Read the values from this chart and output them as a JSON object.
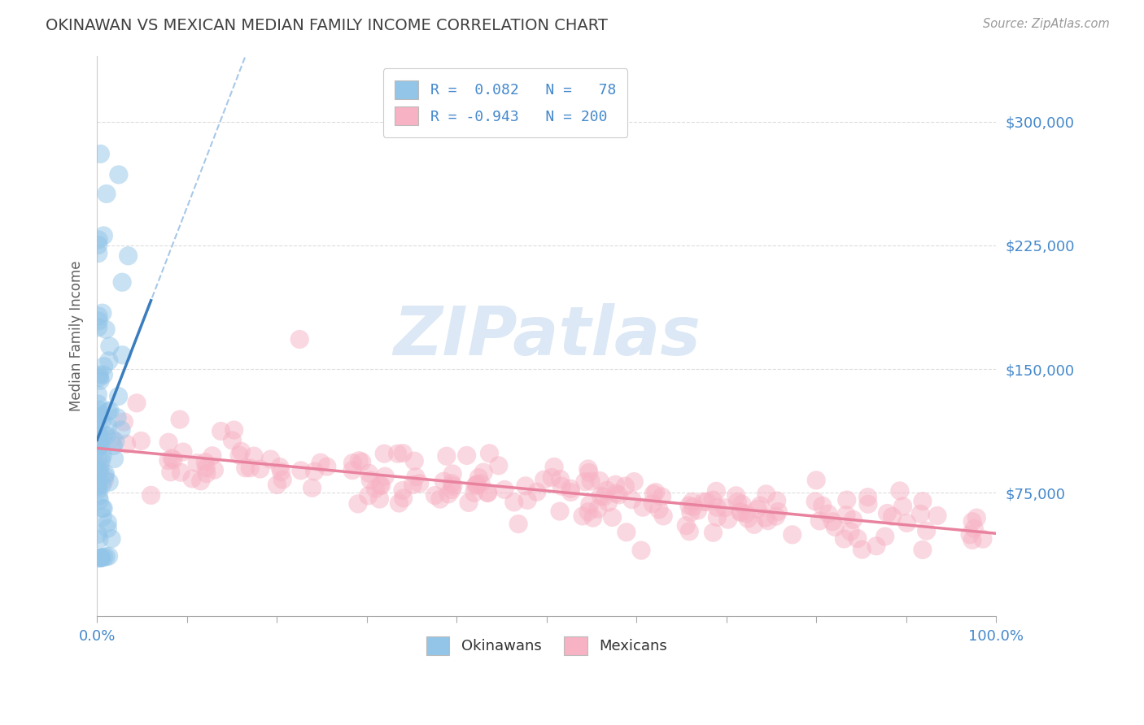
{
  "title": "OKINAWAN VS MEXICAN MEDIAN FAMILY INCOME CORRELATION CHART",
  "source_text": "Source: ZipAtlas.com",
  "ylabel": "Median Family Income",
  "xlim": [
    0.0,
    1.0
  ],
  "ylim": [
    0,
    340000
  ],
  "yticks": [
    75000,
    150000,
    225000,
    300000
  ],
  "ytick_labels": [
    "$75,000",
    "$150,000",
    "$225,000",
    "$300,000"
  ],
  "xtick_positions": [
    0.0,
    0.1,
    0.2,
    0.3,
    0.4,
    0.5,
    0.6,
    0.7,
    0.8,
    0.9,
    1.0
  ],
  "xtick_labels_shown": [
    "0.0%",
    "",
    "",
    "",
    "",
    "",
    "",
    "",
    "",
    "",
    "100.0%"
  ],
  "okinawan_color": "#92c5e8",
  "okinawan_edge": "#92c5e8",
  "mexican_color": "#f7b2c4",
  "mexican_edge": "#f7b2c4",
  "trend_okinawan_solid_color": "#3a7dbf",
  "trend_okinawan_dashed_color": "#a8c8e8",
  "trend_mexican_color": "#e8829e",
  "watermark_text": "ZIPatlas",
  "watermark_color": "#dce8f5",
  "background_color": "#ffffff",
  "title_color": "#404040",
  "axis_label_color": "#606060",
  "tick_color_blue": "#4488cc",
  "tick_color_dark": "#333333",
  "grid_color": "#dddddd",
  "legend_box_color": "#cccccc",
  "legend_r1": "R =  0.082",
  "legend_n1": "N =   78",
  "legend_r2": "R = -0.943",
  "legend_n2": "N = 200",
  "ok_seed": 42,
  "mex_seed": 123
}
